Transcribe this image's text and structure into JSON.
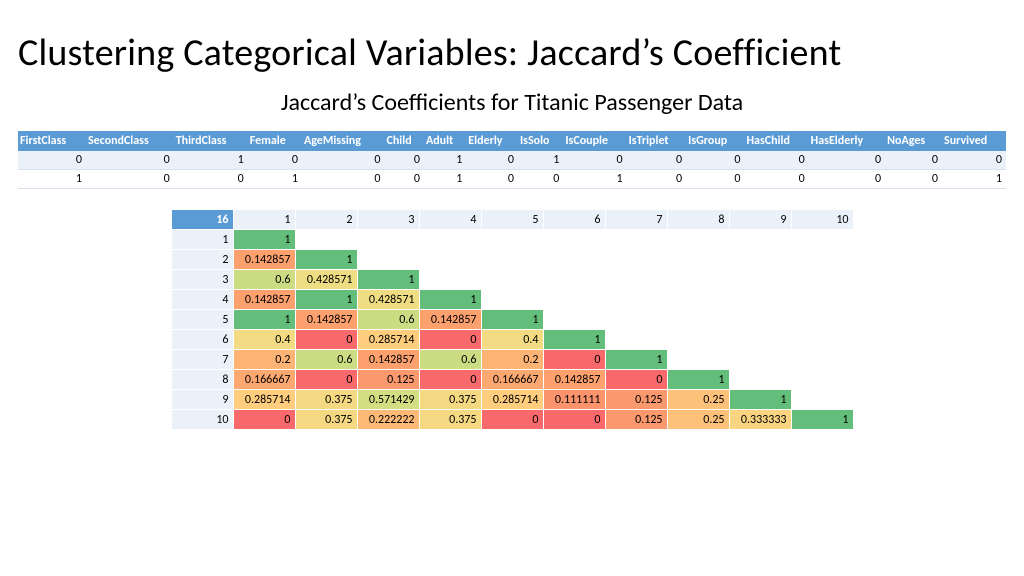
{
  "title": "Clustering Categorical Variables: Jaccard’s Coefficient",
  "subtitle": "Jaccard’s Coefficients for Titanic Passenger Data",
  "title_fontsize": 38,
  "subtitle_fontsize": 24,
  "data_table": {
    "header_bg": "#5b9bd5",
    "header_fg": "#ffffff",
    "band_bg": "#eaf1f8",
    "columns": [
      "FirstClass",
      "SecondClass",
      "ThirdClass",
      "Female",
      "AgeMissing",
      "Child",
      "Adult",
      "Elderly",
      "IsSolo",
      "IsCouple",
      "IsTriplet",
      "IsGroup",
      "HasChild",
      "HasElderly",
      "NoAges",
      "Survived"
    ],
    "rows": [
      [
        0,
        0,
        1,
        0,
        0,
        0,
        1,
        0,
        1,
        0,
        0,
        0,
        0,
        0,
        0,
        0
      ],
      [
        1,
        0,
        0,
        1,
        0,
        0,
        1,
        0,
        0,
        1,
        0,
        0,
        0,
        0,
        0,
        1
      ]
    ]
  },
  "matrix": {
    "corner_label": "16",
    "col_labels": [
      1,
      2,
      3,
      4,
      5,
      6,
      7,
      8,
      9,
      10
    ],
    "row_labels": [
      1,
      2,
      3,
      4,
      5,
      6,
      7,
      8,
      9,
      10
    ],
    "corner_bg": "#5b9bd5",
    "corner_fg": "#ffffff",
    "header_bg": "#eaf1f8",
    "color_scale": {
      "stops": [
        {
          "v": 0.0,
          "c": "#f8696b"
        },
        {
          "v": 0.15,
          "c": "#fca36e"
        },
        {
          "v": 0.3,
          "c": "#fed280"
        },
        {
          "v": 0.5,
          "c": "#e6e384"
        },
        {
          "v": 0.7,
          "c": "#b1d580"
        },
        {
          "v": 1.0,
          "c": "#63be7b"
        }
      ]
    },
    "cells": [
      [
        1
      ],
      [
        0.142857,
        1
      ],
      [
        0.6,
        0.428571,
        1
      ],
      [
        0.142857,
        1,
        0.428571,
        1
      ],
      [
        1,
        0.142857,
        0.6,
        0.142857,
        1
      ],
      [
        0.4,
        0,
        0.285714,
        0,
        0.4,
        1
      ],
      [
        0.2,
        0.6,
        0.142857,
        0.6,
        0.2,
        0,
        1
      ],
      [
        0.166667,
        0,
        0.125,
        0,
        0.166667,
        0.142857,
        0,
        1
      ],
      [
        0.285714,
        0.375,
        0.571429,
        0.375,
        0.285714,
        0.111111,
        0.125,
        0.25,
        1
      ],
      [
        0,
        0.375,
        0.222222,
        0.375,
        0,
        0,
        0.125,
        0.25,
        0.333333,
        1
      ]
    ]
  }
}
